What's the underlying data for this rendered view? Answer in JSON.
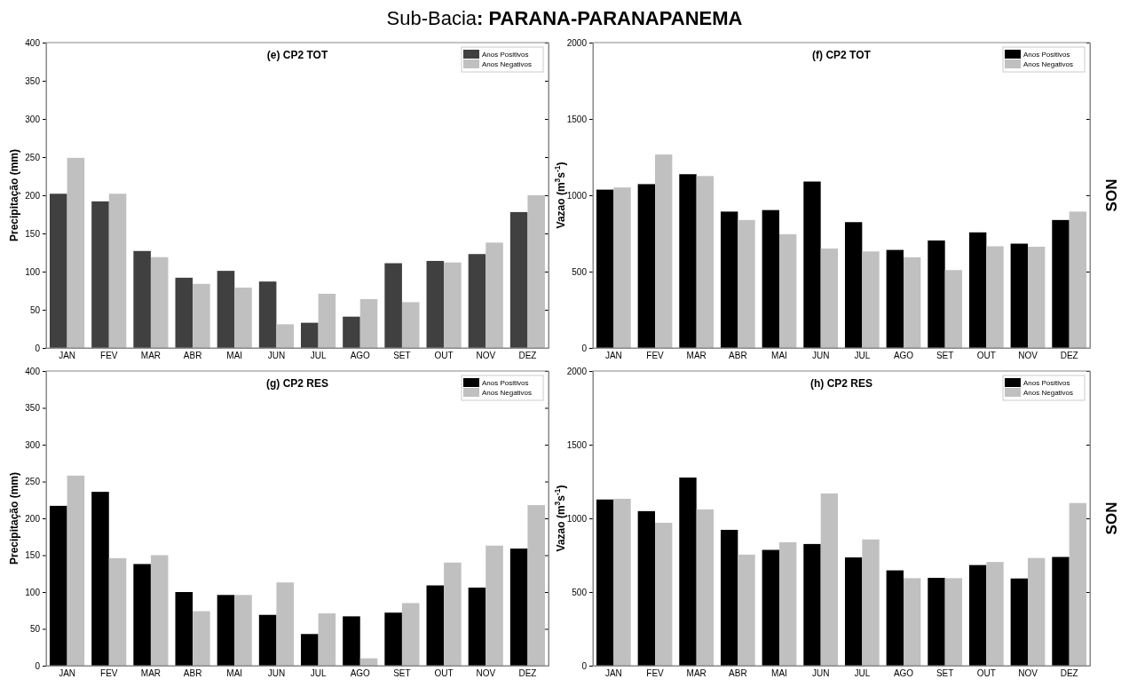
{
  "chart_data": [
    {
      "type": "bar",
      "title": "(e) CP2 TOT",
      "ylabel": "Precipitação (mm)",
      "annotations": [
        "Sub-Bacia: PARANA-PARANAPANEMA"
      ],
      "categories": [
        "JAN",
        "FEV",
        "MAR",
        "ABR",
        "MAI",
        "JUN",
        "JUL",
        "AGO",
        "SET",
        "OUT",
        "NOV",
        "DEZ"
      ],
      "series": [
        {
          "name": "Anos Positivos",
          "color": "#404040",
          "values": [
            202,
            192,
            127,
            92,
            101,
            87,
            33,
            41,
            111,
            114,
            123,
            178
          ]
        },
        {
          "name": "Anos Negativos",
          "color": "#c0c0c0",
          "values": [
            249,
            202,
            119,
            84,
            79,
            31,
            71,
            64,
            60,
            112,
            138,
            200
          ]
        }
      ],
      "ylim": [
        0,
        400
      ],
      "yticks": [
        0,
        50,
        100,
        150,
        200,
        250,
        300,
        350,
        400
      ],
      "legend": "top right",
      "grid": false
    },
    {
      "type": "bar",
      "title": "(f) CP2 TOT",
      "ylabel": "Vazao (m$^{3}$s$^{-1}$)",
      "annotations": [
        "SON"
      ],
      "categories": [
        "JAN",
        "FEV",
        "MAR",
        "ABR",
        "MAI",
        "JUN",
        "JUL",
        "AGO",
        "SET",
        "OUT",
        "NOV",
        "DEZ"
      ],
      "series": [
        {
          "name": "Anos Positivos",
          "color": "#000000",
          "values": [
            1037,
            1073,
            1138,
            893,
            903,
            1090,
            824,
            642,
            704,
            757,
            683,
            838
          ]
        },
        {
          "name": "Anos Negativos",
          "color": "#c0c0c0",
          "values": [
            1051,
            1267,
            1126,
            838,
            745,
            651,
            632,
            594,
            510,
            666,
            663,
            893
          ]
        }
      ],
      "ylim": [
        0,
        2000
      ],
      "yticks": [
        0,
        500,
        1000,
        1500,
        2000
      ],
      "legend": "top right",
      "grid": false
    },
    {
      "type": "bar",
      "title": "(g) CP2 RES",
      "ylabel": "Precipitação (mm)",
      "categories": [
        "JAN",
        "FEV",
        "MAR",
        "ABR",
        "MAI",
        "JUN",
        "JUL",
        "AGO",
        "SET",
        "OUT",
        "NOV",
        "DEZ"
      ],
      "series": [
        {
          "name": "Anos Positivos",
          "color": "#000000",
          "values": [
            217,
            236,
            138,
            100,
            96,
            69,
            43,
            67,
            72,
            109,
            106,
            159
          ]
        },
        {
          "name": "Anos Negativos",
          "color": "#c0c0c0",
          "values": [
            258,
            146,
            150,
            74,
            96,
            113,
            71,
            10,
            85,
            140,
            163,
            218
          ]
        }
      ],
      "ylim": [
        0,
        400
      ],
      "yticks": [
        0,
        50,
        100,
        150,
        200,
        250,
        300,
        350,
        400
      ],
      "legend": "top right",
      "grid": false
    },
    {
      "type": "bar",
      "title": "(h) CP2 RES",
      "ylabel": "Vazao (m$^{3}$s$^{-1}$)",
      "annotations": [
        "SON"
      ],
      "categories": [
        "JAN",
        "FEV",
        "MAR",
        "ABR",
        "MAI",
        "JUN",
        "JUL",
        "AGO",
        "SET",
        "OUT",
        "NOV",
        "DEZ"
      ],
      "series": [
        {
          "name": "Anos Positivos",
          "color": "#000000",
          "values": [
            1128,
            1049,
            1277,
            922,
            786,
            826,
            735,
            647,
            596,
            683,
            592,
            738
          ]
        },
        {
          "name": "Anos Negativos",
          "color": "#c0c0c0",
          "values": [
            1133,
            970,
            1061,
            754,
            838,
            1169,
            857,
            594,
            594,
            704,
            731,
            1104
          ]
        }
      ],
      "ylim": [
        0,
        2000
      ],
      "yticks": [
        0,
        500,
        1000,
        1500,
        2000
      ],
      "legend": "top right",
      "grid": false
    }
  ]
}
